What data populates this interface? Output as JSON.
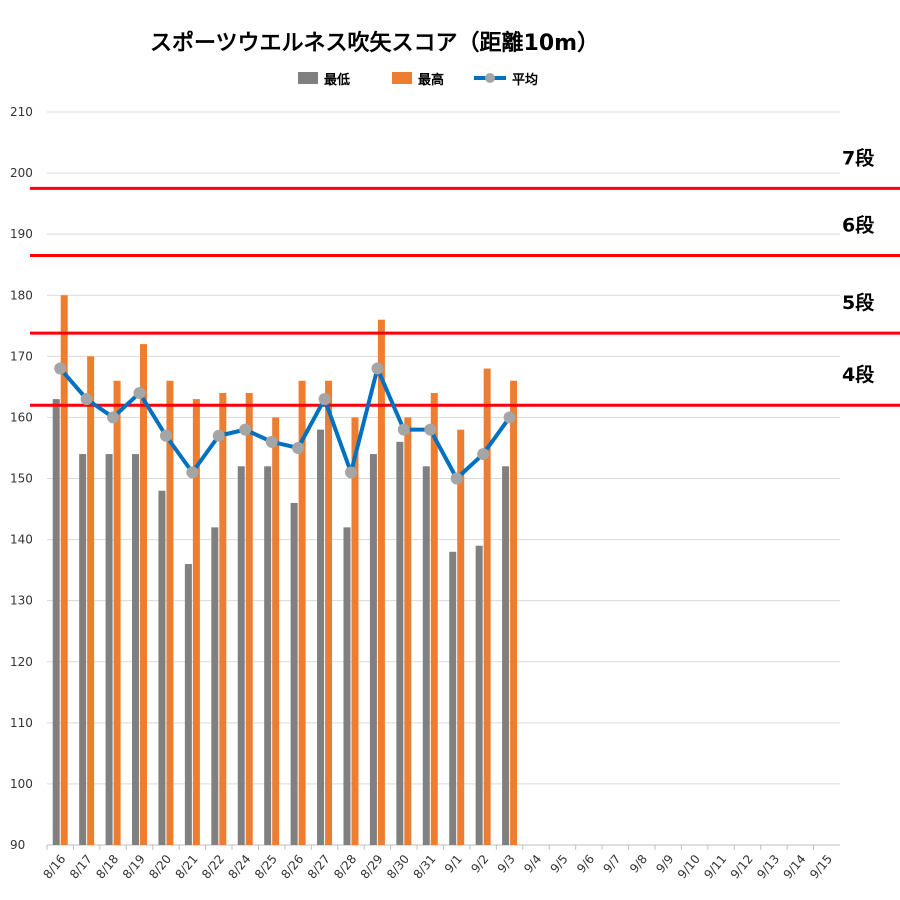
{
  "chart_data": {
    "type": "bar",
    "title": "スポーツウエルネス吹矢スコア（距離10m）",
    "xlabel": "",
    "ylabel": "",
    "ylim": [
      90,
      210
    ],
    "yticks": [
      90,
      100,
      110,
      120,
      130,
      140,
      150,
      160,
      170,
      180,
      190,
      200,
      210
    ],
    "grid": true,
    "legend_position": "top",
    "categories": [
      "8/16",
      "8/17",
      "8/18",
      "8/19",
      "8/20",
      "8/21",
      "8/22",
      "8/24",
      "8/25",
      "8/26",
      "8/27",
      "8/28",
      "8/29",
      "8/30",
      "8/31",
      "9/1",
      "9/2",
      "9/3",
      "9/4",
      "9/5",
      "9/6",
      "9/7",
      "9/8",
      "9/9",
      "9/10",
      "9/11",
      "9/12",
      "9/13",
      "9/14",
      "9/15"
    ],
    "series": [
      {
        "name": "最低",
        "type": "bar",
        "color": "#808080",
        "values": [
          163,
          154,
          154,
          154,
          148,
          136,
          142,
          152,
          152,
          146,
          158,
          142,
          154,
          156,
          152,
          138,
          139,
          152,
          null,
          null,
          null,
          null,
          null,
          null,
          null,
          null,
          null,
          null,
          null,
          null
        ]
      },
      {
        "name": "最高",
        "type": "bar",
        "color": "#ED7D31",
        "values": [
          180,
          170,
          166,
          172,
          166,
          163,
          164,
          164,
          160,
          166,
          166,
          160,
          176,
          160,
          164,
          158,
          168,
          166,
          null,
          null,
          null,
          null,
          null,
          null,
          null,
          null,
          null,
          null,
          null,
          null
        ]
      },
      {
        "name": "平均",
        "type": "line",
        "color": "#0070C0",
        "marker_color": "#A5A5A5",
        "values": [
          168,
          163,
          160,
          164,
          157,
          151,
          157,
          158,
          156,
          155,
          163,
          151,
          168,
          158,
          158,
          150,
          154,
          160,
          null,
          null,
          null,
          null,
          null,
          null,
          null,
          null,
          null,
          null,
          null,
          null
        ]
      }
    ],
    "reference_lines": [
      {
        "label": "7段",
        "value": 197.5,
        "color": "#FF0000"
      },
      {
        "label": "6段",
        "value": 186.5,
        "color": "#FF0000"
      },
      {
        "label": "5段",
        "value": 173.8,
        "color": "#FF0000"
      },
      {
        "label": "4段",
        "value": 162,
        "color": "#FF0000"
      }
    ]
  }
}
